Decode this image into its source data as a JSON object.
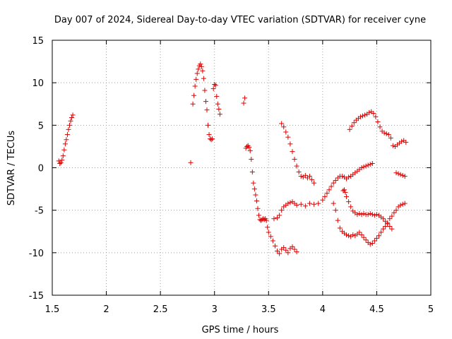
{
  "chart_data": {
    "type": "scatter",
    "title": "Day 007 of 2024, Sidereal Day-to-day VTEC variation (SDTVAR) for receiver cyne",
    "xlabel": "GPS time / hours",
    "ylabel": "SDTVAR / TECUs",
    "xlim": [
      1.5,
      5.0
    ],
    "ylim": [
      -15,
      15
    ],
    "xticks": [
      "1.5",
      "2",
      "2.5",
      "3",
      "3.5",
      "4",
      "4.5",
      "5"
    ],
    "yticks": [
      "15",
      "10",
      "5",
      "0",
      "-5",
      "-10",
      "-15"
    ],
    "grid": true,
    "marker": "+",
    "color": "#e00000",
    "series": [
      {
        "name": "seg1",
        "x": [
          1.56,
          1.57,
          1.58,
          1.59,
          1.6,
          1.61,
          1.62,
          1.63,
          1.64,
          1.65,
          1.66,
          1.67,
          1.68,
          1.69
        ],
        "y": [
          0.8,
          0.5,
          0.6,
          0.9,
          1.4,
          2.1,
          2.8,
          3.3,
          3.9,
          4.5,
          5.0,
          5.5,
          5.9,
          6.2
        ]
      },
      {
        "name": "seg2",
        "x": [
          2.78
        ],
        "y": [
          0.6
        ]
      },
      {
        "name": "seg3",
        "x": [
          2.8,
          2.81,
          2.82,
          2.83,
          2.84,
          2.85,
          2.86,
          2.87,
          2.88,
          2.89,
          2.9,
          2.91,
          2.92,
          2.93,
          2.94,
          2.95,
          2.96,
          2.97,
          2.98,
          2.99,
          3.0,
          3.01,
          3.02,
          3.03,
          3.04,
          3.05
        ],
        "y": [
          7.5,
          8.5,
          9.6,
          10.4,
          11.1,
          11.6,
          12.0,
          12.2,
          11.9,
          11.4,
          10.5,
          9.1,
          7.8,
          6.8,
          5.0,
          3.9,
          3.4,
          3.3,
          3.4,
          9.3,
          9.8,
          9.7,
          8.4,
          7.5,
          6.9,
          6.3
        ]
      },
      {
        "name": "seg4",
        "x": [
          3.27,
          3.28,
          3.29,
          3.3,
          3.31,
          3.32,
          3.33,
          3.34,
          3.35,
          3.36,
          3.37,
          3.38,
          3.39,
          3.4,
          3.41,
          3.42,
          3.43,
          3.44,
          3.45,
          3.46,
          3.47,
          3.48,
          3.49,
          3.5,
          3.52,
          3.54,
          3.56,
          3.58,
          3.6,
          3.62,
          3.64,
          3.66,
          3.68,
          3.7,
          3.72,
          3.74,
          3.76
        ],
        "y": [
          7.6,
          8.2,
          2.3,
          2.5,
          2.6,
          2.4,
          2.0,
          1.0,
          -0.5,
          -1.8,
          -2.5,
          -3.2,
          -3.9,
          -4.8,
          -5.6,
          -6.1,
          -6.2,
          -6.1,
          -6.0,
          -6.1,
          -6.0,
          -6.2,
          -7.0,
          -7.6,
          -8.1,
          -8.6,
          -9.2,
          -9.8,
          -10.1,
          -9.6,
          -9.4,
          -9.7,
          -10.0,
          -9.5,
          -9.3,
          -9.6,
          -9.9
        ]
      },
      {
        "name": "seg5",
        "x": [
          3.55,
          3.58,
          3.6,
          3.62,
          3.64,
          3.66,
          3.68,
          3.7,
          3.72,
          3.74,
          3.76,
          3.8,
          3.84,
          3.88,
          3.92,
          3.96,
          4.0,
          4.02,
          4.04,
          4.06,
          4.08,
          4.1,
          4.12,
          4.14,
          4.16,
          4.18,
          4.2,
          4.22,
          4.24,
          4.26,
          4.28,
          4.3,
          4.32,
          4.34,
          4.36,
          4.38,
          4.4,
          4.42,
          4.44,
          4.46
        ],
        "y": [
          -6.0,
          -5.9,
          -5.6,
          -5.0,
          -4.6,
          -4.4,
          -4.2,
          -4.1,
          -4.0,
          -4.2,
          -4.4,
          -4.3,
          -4.5,
          -4.2,
          -4.3,
          -4.2,
          -3.8,
          -3.4,
          -3.0,
          -2.6,
          -2.2,
          -1.8,
          -1.5,
          -1.2,
          -1.0,
          -1.0,
          -1.1,
          -1.3,
          -1.1,
          -1.0,
          -0.8,
          -0.6,
          -0.4,
          -0.2,
          0.0,
          0.1,
          0.2,
          0.3,
          0.4,
          0.5
        ]
      },
      {
        "name": "seg6",
        "x": [
          3.62,
          3.64,
          3.66,
          3.68,
          3.7,
          3.72,
          3.74,
          3.76,
          3.78,
          3.8,
          3.82,
          3.84,
          3.86,
          3.88,
          3.9,
          3.92
        ],
        "y": [
          5.2,
          4.8,
          4.2,
          3.6,
          2.8,
          1.9,
          1.0,
          0.2,
          -0.5,
          -1.0,
          -1.1,
          -0.9,
          -1.2,
          -1.0,
          -1.4,
          -1.8
        ]
      },
      {
        "name": "seg7",
        "x": [
          4.1,
          4.12,
          4.14,
          4.16,
          4.18,
          4.2,
          4.22,
          4.24,
          4.26,
          4.28,
          4.3,
          4.32,
          4.34,
          4.36,
          4.38,
          4.4,
          4.42,
          4.44,
          4.46,
          4.48,
          4.5,
          4.52,
          4.54,
          4.56,
          4.58,
          4.6,
          4.62,
          4.64,
          4.66,
          4.68,
          4.7,
          4.72,
          4.74,
          4.76
        ],
        "y": [
          -4.2,
          -5.0,
          -6.2,
          -7.1,
          -7.5,
          -7.7,
          -7.9,
          -8.0,
          -8.1,
          -7.9,
          -8.0,
          -7.8,
          -7.6,
          -7.9,
          -8.2,
          -8.5,
          -8.8,
          -9.0,
          -8.9,
          -8.6,
          -8.3,
          -8.0,
          -7.6,
          -7.2,
          -6.9,
          -6.5,
          -6.0,
          -5.7,
          -5.3,
          -5.0,
          -4.6,
          -4.4,
          -4.3,
          -4.2
        ]
      },
      {
        "name": "seg8",
        "x": [
          4.19,
          4.2,
          4.21,
          4.22,
          4.24,
          4.26,
          4.28,
          4.3,
          4.32,
          4.34,
          4.36,
          4.38,
          4.4,
          4.42,
          4.44,
          4.46,
          4.48,
          4.5,
          4.52,
          4.54,
          4.56,
          4.58,
          4.6,
          4.62,
          4.64
        ],
        "y": [
          -2.7,
          -2.6,
          -2.9,
          -3.4,
          -4.0,
          -4.6,
          -5.1,
          -5.3,
          -5.5,
          -5.4,
          -5.5,
          -5.4,
          -5.5,
          -5.5,
          -5.4,
          -5.5,
          -5.6,
          -5.5,
          -5.6,
          -5.8,
          -6.0,
          -6.3,
          -6.6,
          -6.9,
          -7.2
        ]
      },
      {
        "name": "seg9",
        "x": [
          4.25,
          4.27,
          4.29,
          4.31,
          4.33,
          4.35,
          4.37,
          4.39,
          4.41,
          4.43,
          4.45,
          4.47,
          4.49,
          4.51,
          4.53,
          4.55,
          4.57,
          4.59,
          4.61,
          4.63,
          4.65,
          4.67,
          4.69,
          4.71,
          4.73,
          4.75,
          4.77
        ],
        "y": [
          4.5,
          4.9,
          5.3,
          5.6,
          5.8,
          6.0,
          6.1,
          6.2,
          6.3,
          6.5,
          6.6,
          6.4,
          6.0,
          5.4,
          4.8,
          4.3,
          4.1,
          4.0,
          3.9,
          3.5,
          2.6,
          2.5,
          2.7,
          2.9,
          3.1,
          3.2,
          3.0
        ]
      },
      {
        "name": "seg10",
        "x": [
          4.68,
          4.7,
          4.72,
          4.74,
          4.76
        ],
        "y": [
          -0.6,
          -0.7,
          -0.8,
          -0.9,
          -1.0
        ]
      }
    ]
  }
}
